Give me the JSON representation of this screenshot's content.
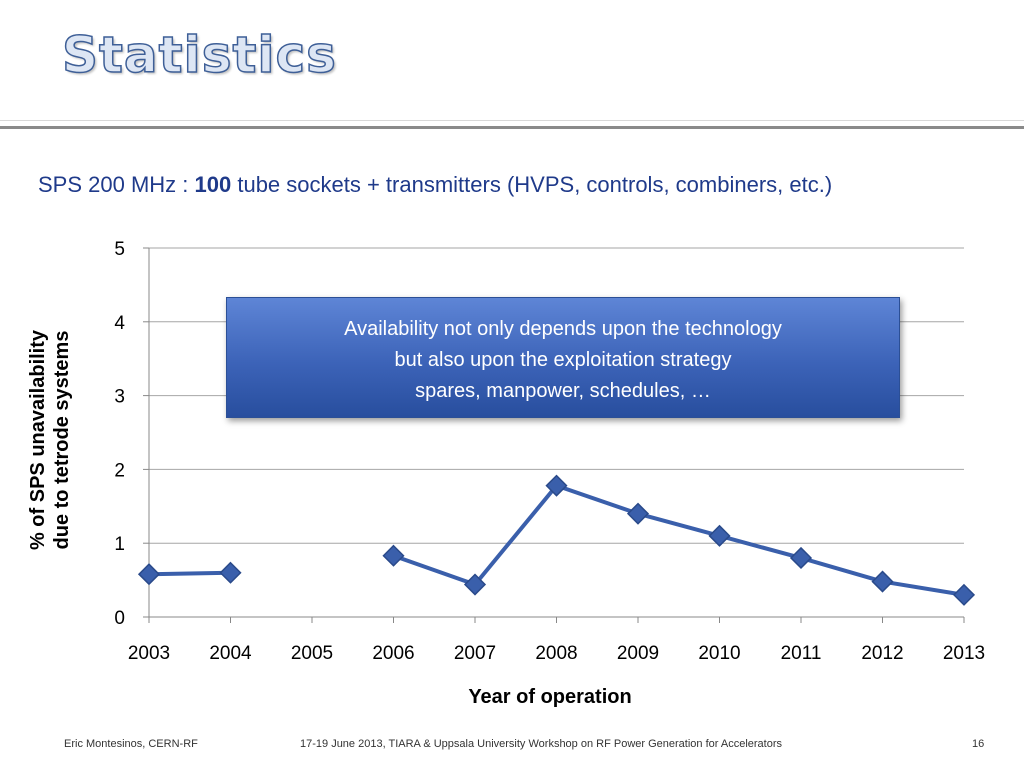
{
  "slide": {
    "title": "Statistics",
    "subtitle_pre": "SPS 200 MHz : ",
    "subtitle_bold": "100",
    "subtitle_post": " tube sockets + transmitters (HVPS, controls, combiners, etc.)",
    "callout": {
      "line1": "Availability not only depends upon the technology",
      "line2": "but also upon the exploitation strategy",
      "line3": "spares, manpower, schedules, …"
    },
    "footer": {
      "author": "Eric Montesinos, CERN-RF",
      "event": "17-19 June 2013, TIARA & Uppsala University Workshop on RF Power Generation for Accelerators",
      "page": "16"
    }
  },
  "colors": {
    "series": "#3a5fab",
    "marker_edge": "#2a4a8a",
    "title_fill": "#dde6f4",
    "title_stroke": "#3e5f97",
    "subtitle": "#1f3a8a"
  },
  "chart_data": {
    "type": "line",
    "xlabel": "Year of operation",
    "ylabel_line1": "% of SPS unavailability",
    "ylabel_line2": "due to tetrode systems",
    "categories": [
      "2003",
      "2004",
      "2005",
      "2006",
      "2007",
      "2008",
      "2009",
      "2010",
      "2011",
      "2012",
      "2013"
    ],
    "yticks": [
      "0",
      "1",
      "2",
      "3",
      "4",
      "5"
    ],
    "ylim": [
      0,
      5
    ],
    "grid": true,
    "series": [
      {
        "values": [
          0.58,
          0.6,
          null,
          0.83,
          0.44,
          1.78,
          1.4,
          1.1,
          0.8,
          0.48,
          0.3
        ]
      }
    ]
  }
}
